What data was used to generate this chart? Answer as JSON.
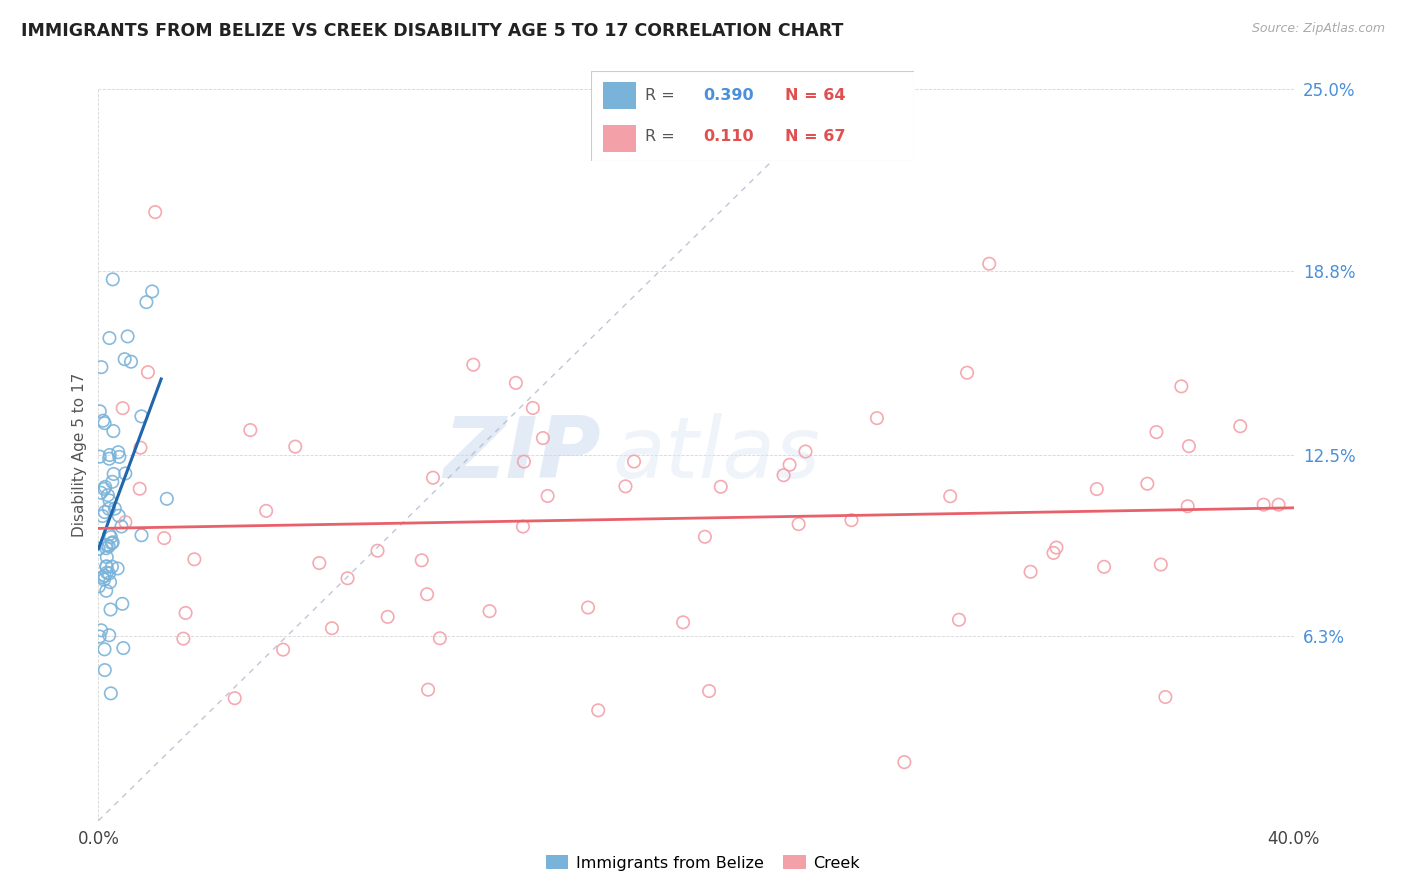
{
  "title": "IMMIGRANTS FROM BELIZE VS CREEK DISABILITY AGE 5 TO 17 CORRELATION CHART",
  "source": "Source: ZipAtlas.com",
  "ylabel": "Disability Age 5 to 17",
  "legend_label_1": "Immigrants from Belize",
  "legend_label_2": "Creek",
  "r1": 0.39,
  "n1": 64,
  "r2": 0.11,
  "n2": 67,
  "color1": "#7ab3d9",
  "color2": "#f4a0a8",
  "trendline1_color": "#2166ac",
  "trendline2_color": "#e8606a",
  "xlim": [
    0.0,
    0.4
  ],
  "ylim": [
    0.0,
    0.25
  ],
  "xtick_positions": [
    0.0,
    0.4
  ],
  "xticklabels": [
    "0.0%",
    "40.0%"
  ],
  "ytick_positions": [
    0.0,
    0.063,
    0.125,
    0.188,
    0.25
  ],
  "yticklabels": [
    "",
    "6.3%",
    "12.5%",
    "18.8%",
    "25.0%"
  ],
  "watermark_zip": "ZIP",
  "watermark_atlas": "atlas",
  "diag_color": "#b0b8d0",
  "legend_r1_color": "#4a90d9",
  "legend_n1_color": "#e05050",
  "legend_r2_color": "#e05050",
  "legend_n2_color": "#e05050"
}
